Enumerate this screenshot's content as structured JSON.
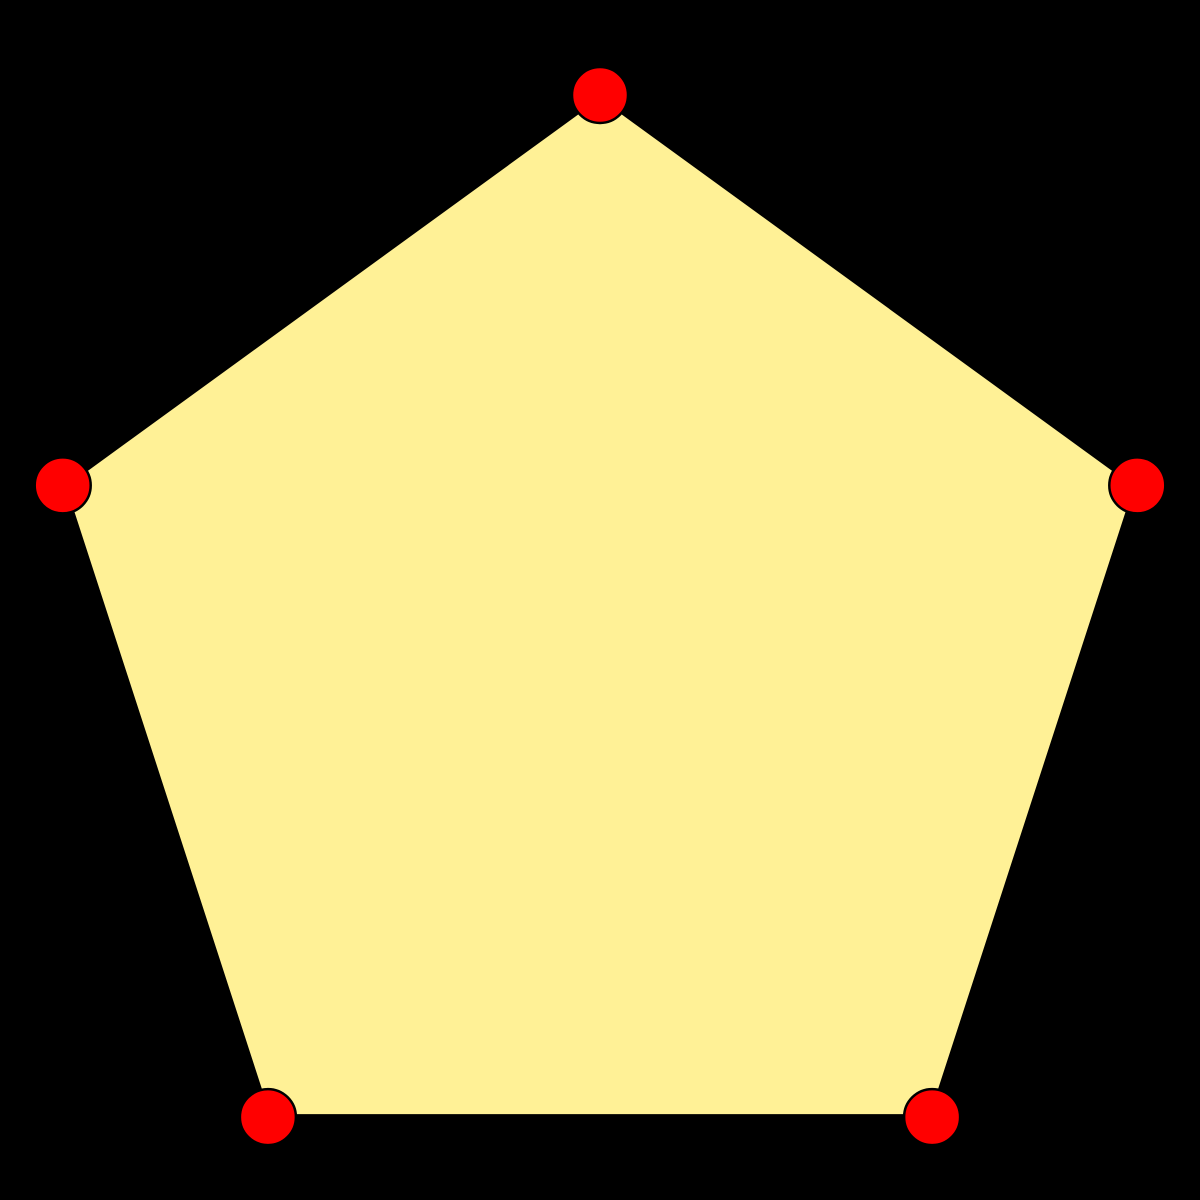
{
  "diagram": {
    "shape": "regular-pentagon",
    "vertex_count": 5,
    "colors": {
      "background": "#000000",
      "fill": "#FFF196",
      "edge": "#000000",
      "vertex_fill": "#FF0000",
      "vertex_stroke": "#000000"
    },
    "vertices": [
      {
        "id": "top"
      },
      {
        "id": "upper-right"
      },
      {
        "id": "lower-right"
      },
      {
        "id": "lower-left"
      },
      {
        "id": "upper-left"
      }
    ]
  }
}
